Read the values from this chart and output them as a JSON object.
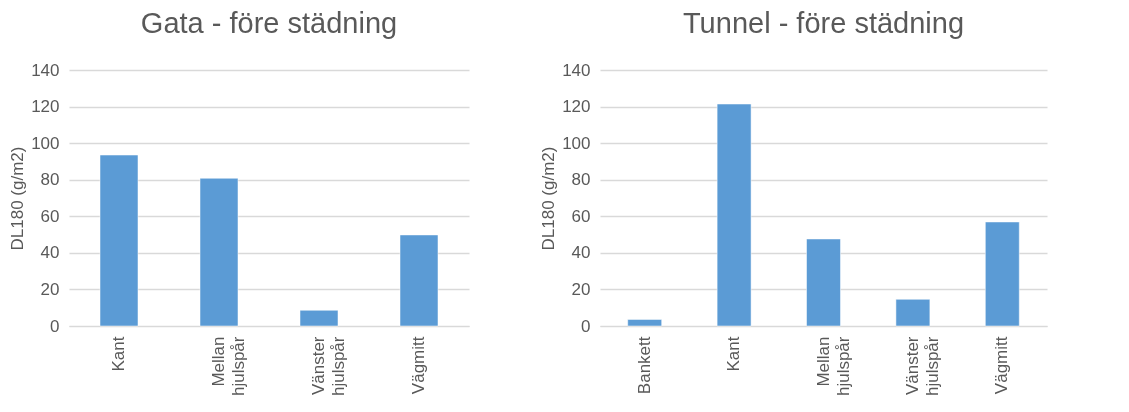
{
  "chart_data": [
    {
      "type": "bar",
      "title": "Gata - före städning",
      "ylabel": "DL180 (g/m2)",
      "categories": [
        "Kant",
        "Mellan hjulspår",
        "Vänster hjulspår",
        "Vägmitt"
      ],
      "values": [
        93.5,
        80.8,
        8.6,
        49.8
      ],
      "color": "#5b9bd5",
      "ylim": [
        0,
        140
      ],
      "yticks": [
        0,
        20,
        40,
        60,
        80,
        100,
        120,
        140
      ],
      "grid": "y"
    },
    {
      "type": "bar",
      "title": "Tunnel - före städning",
      "ylabel": "DL180 (g/m2)",
      "categories": [
        "Bankett",
        "Kant",
        "Mellan hjulspår",
        "Vänster hjulspår",
        "Vägmitt"
      ],
      "values": [
        3.6,
        121.4,
        47.6,
        14.6,
        56.9
      ],
      "color": "#5b9bd5",
      "ylim": [
        0,
        140
      ],
      "yticks": [
        0,
        20,
        40,
        60,
        80,
        100,
        120,
        140
      ],
      "grid": "y"
    }
  ]
}
